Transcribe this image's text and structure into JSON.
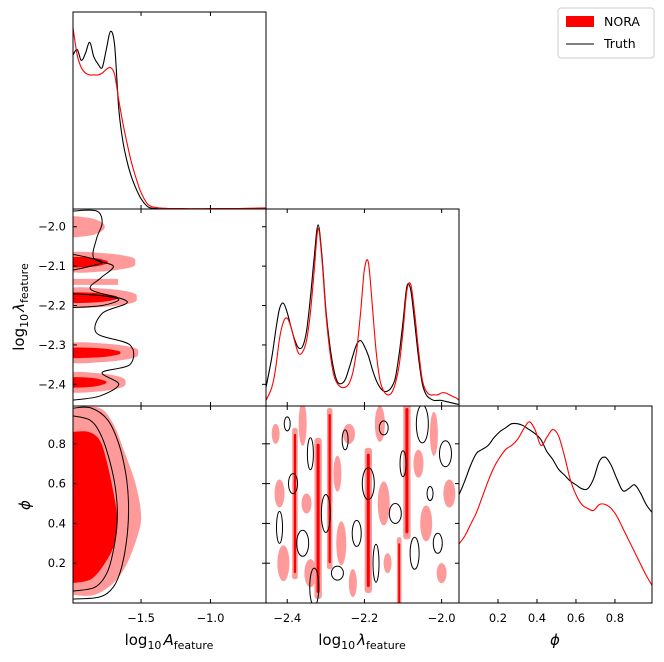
{
  "legend": {
    "entries": [
      {
        "label": "NORA",
        "style": "filled",
        "color": "#ff0000"
      },
      {
        "label": "Truth",
        "style": "line",
        "color": "#000000"
      }
    ]
  },
  "labels": {
    "x_A": {
      "base": "log",
      "sub": "10",
      "sym": "A",
      "ssub": "feature"
    },
    "x_lam": {
      "base": "log",
      "sub": "10",
      "sym": "λ",
      "ssub": "feature"
    },
    "x_phi": {
      "sym": "ϕ"
    },
    "y_lam": {
      "base": "log",
      "sub": "10",
      "sym": "λ",
      "ssub": "feature"
    },
    "y_phi": {
      "sym": "ϕ"
    }
  },
  "ticks": {
    "A": [
      {
        "v": -1.5,
        "t": "−1.5"
      },
      {
        "v": -1.0,
        "t": "−1.0"
      }
    ],
    "lam": [
      {
        "v": -2.4,
        "t": "−2.4"
      },
      {
        "v": -2.3,
        "t": "−2.3"
      },
      {
        "v": -2.2,
        "t": "−2.2"
      },
      {
        "v": -2.1,
        "t": "−2.1"
      },
      {
        "v": -2.0,
        "t": "−2.0"
      }
    ],
    "lam_x": [
      {
        "v": -2.4,
        "t": "−2.4"
      },
      {
        "v": -2.2,
        "t": "−2.2"
      },
      {
        "v": -2.0,
        "t": "−2.0"
      }
    ],
    "phi": [
      {
        "v": 0.2,
        "t": "0.2"
      },
      {
        "v": 0.4,
        "t": "0.4"
      },
      {
        "v": 0.6,
        "t": "0.6"
      },
      {
        "v": 0.8,
        "t": "0.8"
      }
    ]
  },
  "chart_data": {
    "type": "corner",
    "parameters": [
      "log10_A_feature",
      "log10_lambda_feature",
      "phi"
    ],
    "ranges": {
      "A": [
        -1.99,
        -0.6
      ],
      "lam": [
        -2.455,
        -1.955
      ],
      "phi": [
        0.0,
        0.99
      ]
    },
    "colors": {
      "nora": "#ff0000",
      "nora_light": "#ff9a9a",
      "truth": "#000000"
    },
    "marginals": {
      "A": {
        "x": [
          -1.99,
          -1.96,
          -1.93,
          -1.9,
          -1.87,
          -1.84,
          -1.81,
          -1.78,
          -1.75,
          -1.72,
          -1.69,
          -1.66,
          -1.63,
          -1.6,
          -1.57,
          -1.54,
          -1.51,
          -1.48,
          -1.45,
          -1.42,
          -1.39,
          -1.36,
          -1.33,
          -1.3,
          -1.2,
          -1.0,
          -0.8,
          -0.6
        ],
        "nora": [
          1.0,
          0.85,
          0.78,
          0.75,
          0.74,
          0.74,
          0.74,
          0.75,
          0.77,
          0.78,
          0.74,
          0.6,
          0.47,
          0.36,
          0.26,
          0.18,
          0.11,
          0.06,
          0.025,
          0.012,
          0.008,
          0.005,
          0.004,
          0.003,
          0.002,
          0.002,
          0.003,
          0.006
        ],
        "truth": [
          0.85,
          0.88,
          0.82,
          0.86,
          0.92,
          0.84,
          0.8,
          0.78,
          0.88,
          0.98,
          0.9,
          0.55,
          0.37,
          0.26,
          0.18,
          0.12,
          0.07,
          0.035,
          0.012,
          0.004,
          0.002,
          0.001,
          0.001,
          0.0,
          0.0,
          0.0,
          0.0,
          0.0
        ]
      },
      "lam": {
        "x": [
          -2.455,
          -2.44,
          -2.43,
          -2.42,
          -2.41,
          -2.4,
          -2.39,
          -2.38,
          -2.37,
          -2.36,
          -2.35,
          -2.34,
          -2.33,
          -2.32,
          -2.31,
          -2.3,
          -2.29,
          -2.28,
          -2.27,
          -2.26,
          -2.25,
          -2.24,
          -2.23,
          -2.22,
          -2.21,
          -2.2,
          -2.19,
          -2.18,
          -2.17,
          -2.16,
          -2.15,
          -2.14,
          -2.13,
          -2.12,
          -2.11,
          -2.1,
          -2.09,
          -2.08,
          -2.07,
          -2.06,
          -2.05,
          -2.04,
          -2.03,
          -2.02,
          -2.01,
          -2.0,
          -1.99,
          -1.98,
          -1.97,
          -1.96,
          -1.955
        ],
        "nora": [
          0.03,
          0.1,
          0.2,
          0.36,
          0.45,
          0.47,
          0.42,
          0.34,
          0.28,
          0.29,
          0.35,
          0.5,
          0.73,
          0.95,
          0.78,
          0.5,
          0.3,
          0.17,
          0.12,
          0.1,
          0.1,
          0.12,
          0.18,
          0.3,
          0.5,
          0.73,
          0.77,
          0.55,
          0.3,
          0.14,
          0.08,
          0.06,
          0.07,
          0.12,
          0.22,
          0.4,
          0.62,
          0.65,
          0.5,
          0.3,
          0.14,
          0.08,
          0.06,
          0.06,
          0.06,
          0.07,
          0.07,
          0.06,
          0.05,
          0.04,
          0.03
        ],
        "truth": [
          0.1,
          0.26,
          0.4,
          0.52,
          0.55,
          0.5,
          0.42,
          0.35,
          0.31,
          0.32,
          0.4,
          0.58,
          0.8,
          0.97,
          0.8,
          0.52,
          0.33,
          0.2,
          0.13,
          0.12,
          0.14,
          0.2,
          0.27,
          0.33,
          0.35,
          0.32,
          0.27,
          0.2,
          0.14,
          0.1,
          0.08,
          0.08,
          0.1,
          0.15,
          0.28,
          0.45,
          0.64,
          0.62,
          0.45,
          0.26,
          0.12,
          0.06,
          0.04,
          0.03,
          0.03,
          0.03,
          0.025,
          0.02,
          0.015,
          0.01,
          0.01
        ]
      },
      "phi": {
        "x": [
          0.0,
          0.03,
          0.06,
          0.09,
          0.12,
          0.15,
          0.18,
          0.21,
          0.24,
          0.27,
          0.3,
          0.33,
          0.36,
          0.39,
          0.42,
          0.45,
          0.48,
          0.51,
          0.54,
          0.57,
          0.6,
          0.63,
          0.66,
          0.69,
          0.72,
          0.75,
          0.78,
          0.81,
          0.84,
          0.87,
          0.9,
          0.93,
          0.96,
          0.99
        ],
        "nora": [
          0.3,
          0.34,
          0.4,
          0.46,
          0.54,
          0.62,
          0.69,
          0.74,
          0.78,
          0.8,
          0.83,
          0.88,
          0.92,
          0.88,
          0.8,
          0.84,
          0.88,
          0.85,
          0.75,
          0.63,
          0.55,
          0.5,
          0.48,
          0.47,
          0.5,
          0.5,
          0.48,
          0.44,
          0.38,
          0.32,
          0.26,
          0.2,
          0.14,
          0.09
        ],
        "truth": [
          0.55,
          0.62,
          0.7,
          0.76,
          0.78,
          0.8,
          0.84,
          0.87,
          0.89,
          0.91,
          0.91,
          0.9,
          0.88,
          0.86,
          0.83,
          0.77,
          0.73,
          0.68,
          0.65,
          0.62,
          0.6,
          0.58,
          0.58,
          0.63,
          0.72,
          0.74,
          0.7,
          0.63,
          0.57,
          0.58,
          0.6,
          0.56,
          0.5,
          0.46
        ]
      }
    },
    "joint_lam_A": {
      "bands": [
        {
          "lam": -2.395,
          "a_outer": -1.64,
          "a_inner": -1.77,
          "inner": true
        },
        {
          "lam": -2.32,
          "a_outer": -1.55,
          "a_inner": -1.67,
          "inner": true
        },
        {
          "lam": -2.18,
          "a_outer": -1.56,
          "a_inner": -1.69,
          "inner": true
        },
        {
          "lam": -2.09,
          "a_outer": -1.57,
          "a_inner": -1.76,
          "inner": true
        },
        {
          "lam": -2.0,
          "a_outer": -1.79,
          "a_inner": -1.92,
          "inner": false
        }
      ],
      "truth_contours": [
        [
          [
            -1.99,
            -1.96
          ],
          [
            -1.82,
            -1.96
          ],
          [
            -1.78,
            -1.99
          ],
          [
            -1.82,
            -2.03
          ],
          [
            -1.84,
            -2.08
          ],
          [
            -1.7,
            -2.1
          ],
          [
            -1.79,
            -2.13
          ],
          [
            -1.86,
            -2.16
          ],
          [
            -1.6,
            -2.19
          ],
          [
            -1.78,
            -2.22
          ],
          [
            -1.82,
            -2.27
          ],
          [
            -1.58,
            -2.3
          ],
          [
            -1.58,
            -2.35
          ],
          [
            -1.78,
            -2.37
          ],
          [
            -1.66,
            -2.4
          ],
          [
            -1.8,
            -2.43
          ],
          [
            -1.99,
            -2.44
          ]
        ],
        [
          [
            -1.99,
            -2.17
          ],
          [
            -1.78,
            -2.175
          ],
          [
            -1.66,
            -2.185
          ],
          [
            -1.78,
            -2.2
          ],
          [
            -1.99,
            -2.205
          ]
        ],
        [
          [
            -1.99,
            -2.07
          ],
          [
            -1.86,
            -2.08
          ],
          [
            -1.78,
            -2.09
          ],
          [
            -1.86,
            -2.1
          ],
          [
            -1.99,
            -2.11
          ]
        ]
      ]
    },
    "joint_phi_A": {
      "outer": [
        [
          -1.99,
          0.04
        ],
        [
          -1.84,
          0.04
        ],
        [
          -1.7,
          0.1
        ],
        [
          -1.6,
          0.2
        ],
        [
          -1.52,
          0.35
        ],
        [
          -1.5,
          0.45
        ],
        [
          -1.54,
          0.6
        ],
        [
          -1.62,
          0.76
        ],
        [
          -1.7,
          0.9
        ],
        [
          -1.8,
          0.98
        ],
        [
          -1.99,
          0.98
        ]
      ],
      "inner": [
        [
          -1.99,
          0.1
        ],
        [
          -1.86,
          0.12
        ],
        [
          -1.76,
          0.2
        ],
        [
          -1.69,
          0.3
        ],
        [
          -1.67,
          0.42
        ],
        [
          -1.7,
          0.56
        ],
        [
          -1.75,
          0.72
        ],
        [
          -1.8,
          0.82
        ],
        [
          -1.88,
          0.86
        ],
        [
          -1.99,
          0.86
        ]
      ],
      "truth_outer": [
        [
          -1.99,
          0.02
        ],
        [
          -1.8,
          0.03
        ],
        [
          -1.7,
          0.08
        ],
        [
          -1.64,
          0.18
        ],
        [
          -1.6,
          0.34
        ],
        [
          -1.59,
          0.5
        ],
        [
          -1.61,
          0.65
        ],
        [
          -1.66,
          0.8
        ],
        [
          -1.74,
          0.92
        ],
        [
          -1.86,
          0.98
        ],
        [
          -1.99,
          0.98
        ]
      ],
      "truth_inner": [
        [
          -1.99,
          0.06
        ],
        [
          -1.83,
          0.08
        ],
        [
          -1.74,
          0.16
        ],
        [
          -1.69,
          0.3
        ],
        [
          -1.67,
          0.45
        ],
        [
          -1.69,
          0.6
        ],
        [
          -1.74,
          0.75
        ],
        [
          -1.8,
          0.86
        ],
        [
          -1.87,
          0.92
        ],
        [
          -1.99,
          0.94
        ]
      ]
    },
    "joint_phi_lam": {
      "stripes": [
        {
          "lam": -2.38,
          "width": 0.006,
          "phi": [
            0.15,
            0.85
          ]
        },
        {
          "lam": -2.32,
          "width": 0.008,
          "phi": [
            0.05,
            0.8
          ]
        },
        {
          "lam": -2.29,
          "width": 0.006,
          "phi": [
            0.2,
            0.95
          ]
        },
        {
          "lam": -2.19,
          "width": 0.008,
          "phi": [
            0.08,
            0.75
          ]
        },
        {
          "lam": -2.09,
          "width": 0.008,
          "phi": [
            0.35,
            0.98
          ]
        },
        {
          "lam": -2.11,
          "width": 0.005,
          "phi": [
            0.0,
            0.3
          ]
        }
      ],
      "light_blobs": [
        [
          -2.43,
          0.85
        ],
        [
          -2.42,
          0.55
        ],
        [
          -2.41,
          0.2
        ],
        [
          -2.36,
          0.9
        ],
        [
          -2.35,
          0.5
        ],
        [
          -2.34,
          0.15
        ],
        [
          -2.27,
          0.65
        ],
        [
          -2.26,
          0.3
        ],
        [
          -2.24,
          0.85
        ],
        [
          -2.23,
          0.1
        ],
        [
          -2.16,
          0.9
        ],
        [
          -2.15,
          0.5
        ],
        [
          -2.14,
          0.2
        ],
        [
          -2.06,
          0.7
        ],
        [
          -2.04,
          0.4
        ],
        [
          -2.02,
          0.85
        ],
        [
          -2.0,
          0.15
        ],
        [
          -1.98,
          0.55
        ]
      ],
      "truth_loops": [
        [
          -2.4,
          0.9
        ],
        [
          -2.385,
          0.6
        ],
        [
          -2.36,
          0.3
        ],
        [
          -2.34,
          0.75
        ],
        [
          -2.3,
          0.45
        ],
        [
          -2.27,
          0.15
        ],
        [
          -2.25,
          0.82
        ],
        [
          -2.22,
          0.35
        ],
        [
          -2.19,
          0.6
        ],
        [
          -2.17,
          0.2
        ],
        [
          -2.15,
          0.88
        ],
        [
          -2.12,
          0.45
        ],
        [
          -2.1,
          0.7
        ],
        [
          -2.07,
          0.25
        ],
        [
          -2.05,
          0.9
        ],
        [
          -2.03,
          0.55
        ],
        [
          -2.01,
          0.3
        ],
        [
          -1.99,
          0.75
        ],
        [
          -2.42,
          0.38
        ],
        [
          -2.33,
          0.08
        ]
      ]
    }
  }
}
